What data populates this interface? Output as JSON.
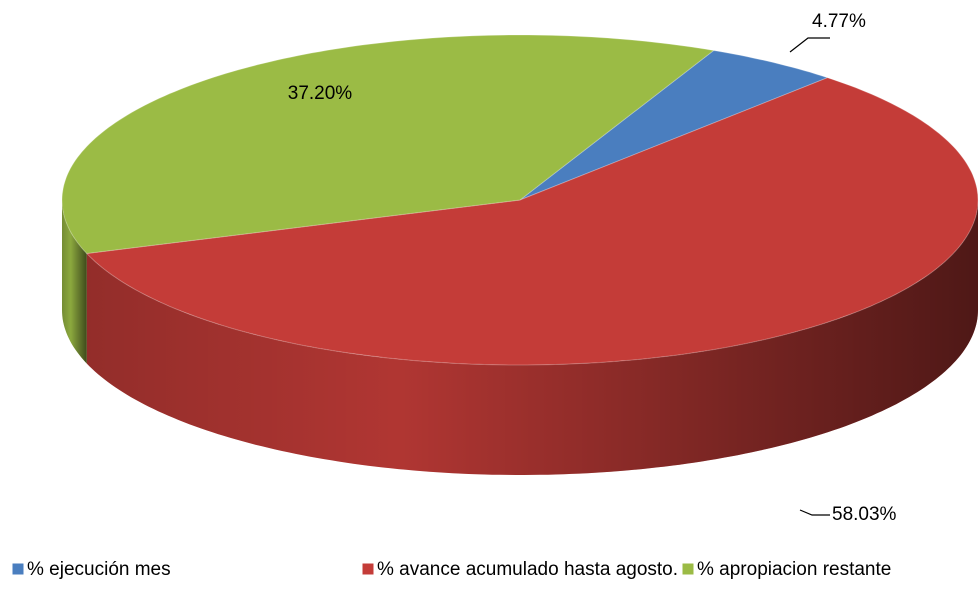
{
  "chart_data": {
    "type": "pie",
    "categories": [
      "% ejecución mes",
      "% avance acumulado hasta agosto.",
      "% apropiacion restante"
    ],
    "values": [
      4.77,
      58.03,
      37.2
    ],
    "value_labels": [
      "4.77%",
      "58.03%",
      "37.20%"
    ],
    "colors": [
      "#4a7ebf",
      "#c43c38",
      "#9bbb45"
    ]
  }
}
